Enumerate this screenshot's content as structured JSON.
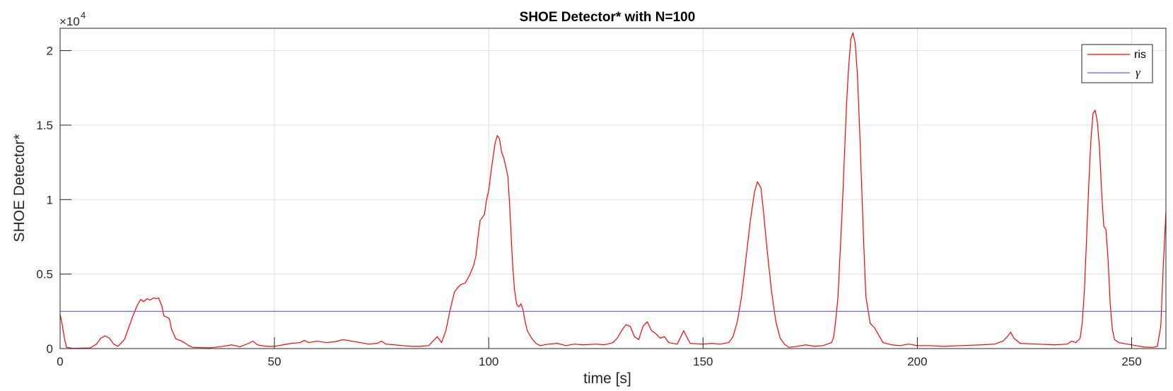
{
  "chart_data": {
    "type": "line",
    "title": "SHOE Detector* with N=100",
    "xlabel": "time [s]",
    "ylabel": "SHOE Detector*",
    "xlim": [
      0,
      258
    ],
    "ylim": [
      0,
      21500
    ],
    "x_ticks": [
      0,
      50,
      100,
      150,
      200,
      250
    ],
    "x_tick_labels": [
      "0",
      "50",
      "100",
      "150",
      "200",
      "250"
    ],
    "y_ticks": [
      0,
      5000,
      10000,
      15000,
      20000
    ],
    "y_tick_labels": [
      "0",
      "0.5",
      "1",
      "1.5",
      "2"
    ],
    "y_exponent_label": {
      "base": "×10",
      "power": "4"
    },
    "grid": true,
    "legend_position": "top-right",
    "series": [
      {
        "name": "ris",
        "color": "#ff0000",
        "points": [
          [
            0,
            2300
          ],
          [
            0.5,
            1600
          ],
          [
            1,
            700
          ],
          [
            1.5,
            80
          ],
          [
            3,
            20
          ],
          [
            7,
            40
          ],
          [
            8.5,
            300
          ],
          [
            9.5,
            700
          ],
          [
            10.5,
            850
          ],
          [
            11.5,
            700
          ],
          [
            12.5,
            300
          ],
          [
            13.5,
            150
          ],
          [
            15,
            600
          ],
          [
            16,
            1400
          ],
          [
            17,
            2200
          ],
          [
            18,
            2900
          ],
          [
            18.8,
            3300
          ],
          [
            19.5,
            3150
          ],
          [
            20.3,
            3350
          ],
          [
            21,
            3250
          ],
          [
            21.8,
            3400
          ],
          [
            22.5,
            3350
          ],
          [
            23,
            3400
          ],
          [
            23.8,
            2800
          ],
          [
            24.2,
            2200
          ],
          [
            25,
            2100
          ],
          [
            25.5,
            2000
          ],
          [
            26,
            1300
          ],
          [
            27,
            650
          ],
          [
            28,
            550
          ],
          [
            29,
            400
          ],
          [
            30,
            200
          ],
          [
            31,
            80
          ],
          [
            35,
            50
          ],
          [
            38,
            150
          ],
          [
            40,
            250
          ],
          [
            42,
            120
          ],
          [
            44,
            350
          ],
          [
            45,
            500
          ],
          [
            46,
            250
          ],
          [
            48,
            150
          ],
          [
            50,
            150
          ],
          [
            52,
            250
          ],
          [
            54,
            350
          ],
          [
            56,
            400
          ],
          [
            57,
            550
          ],
          [
            58,
            400
          ],
          [
            60,
            500
          ],
          [
            62,
            400
          ],
          [
            64,
            450
          ],
          [
            66,
            600
          ],
          [
            68,
            500
          ],
          [
            70,
            400
          ],
          [
            72,
            300
          ],
          [
            74,
            350
          ],
          [
            75,
            500
          ],
          [
            76,
            300
          ],
          [
            78,
            250
          ],
          [
            80,
            200
          ],
          [
            82,
            150
          ],
          [
            84,
            150
          ],
          [
            86,
            200
          ],
          [
            87,
            500
          ],
          [
            88,
            800
          ],
          [
            89,
            400
          ],
          [
            90,
            1200
          ],
          [
            91,
            2600
          ],
          [
            92,
            3800
          ],
          [
            92.8,
            4100
          ],
          [
            93.5,
            4300
          ],
          [
            94.5,
            4400
          ],
          [
            95.5,
            4900
          ],
          [
            96.5,
            5600
          ],
          [
            97,
            6200
          ],
          [
            97.5,
            7500
          ],
          [
            98,
            8600
          ],
          [
            98.5,
            8800
          ],
          [
            99,
            9000
          ],
          [
            99.5,
            10000
          ],
          [
            100,
            10600
          ],
          [
            100.5,
            11800
          ],
          [
            101,
            12800
          ],
          [
            101.5,
            13800
          ],
          [
            102,
            14300
          ],
          [
            102.5,
            14100
          ],
          [
            103,
            13200
          ],
          [
            103.5,
            12800
          ],
          [
            104,
            12200
          ],
          [
            104.5,
            11500
          ],
          [
            105,
            9000
          ],
          [
            105.5,
            6000
          ],
          [
            106,
            4000
          ],
          [
            106.5,
            3000
          ],
          [
            107,
            2800
          ],
          [
            107.5,
            3000
          ],
          [
            108,
            2600
          ],
          [
            108.5,
            1800
          ],
          [
            109,
            1200
          ],
          [
            110,
            700
          ],
          [
            111,
            350
          ],
          [
            112,
            200
          ],
          [
            114,
            300
          ],
          [
            116,
            350
          ],
          [
            118,
            200
          ],
          [
            120,
            300
          ],
          [
            122,
            250
          ],
          [
            125,
            300
          ],
          [
            127,
            250
          ],
          [
            129,
            400
          ],
          [
            130,
            700
          ],
          [
            131,
            1200
          ],
          [
            132,
            1600
          ],
          [
            133,
            1500
          ],
          [
            134,
            800
          ],
          [
            135,
            600
          ],
          [
            136,
            1500
          ],
          [
            137,
            1800
          ],
          [
            138,
            1200
          ],
          [
            139,
            1000
          ],
          [
            140,
            700
          ],
          [
            141,
            800
          ],
          [
            142,
            400
          ],
          [
            144,
            300
          ],
          [
            145,
            900
          ],
          [
            145.5,
            1200
          ],
          [
            146,
            900
          ],
          [
            147,
            350
          ],
          [
            150,
            300
          ],
          [
            152,
            350
          ],
          [
            154,
            300
          ],
          [
            156,
            400
          ],
          [
            157,
            800
          ],
          [
            158,
            1800
          ],
          [
            159,
            3500
          ],
          [
            160,
            6000
          ],
          [
            161,
            8500
          ],
          [
            162,
            10500
          ],
          [
            162.7,
            11200
          ],
          [
            163.5,
            10800
          ],
          [
            164,
            9500
          ],
          [
            165,
            6500
          ],
          [
            166,
            3800
          ],
          [
            167,
            1800
          ],
          [
            168,
            700
          ],
          [
            169,
            300
          ],
          [
            170,
            80
          ],
          [
            172,
            150
          ],
          [
            174,
            250
          ],
          [
            176,
            150
          ],
          [
            178,
            200
          ],
          [
            180,
            400
          ],
          [
            180.5,
            800
          ],
          [
            181,
            2000
          ],
          [
            181.5,
            3500
          ],
          [
            182,
            6500
          ],
          [
            182.5,
            9500
          ],
          [
            183,
            13000
          ],
          [
            183.5,
            16500
          ],
          [
            184,
            19000
          ],
          [
            184.5,
            20800
          ],
          [
            185,
            21200
          ],
          [
            185.5,
            20500
          ],
          [
            186,
            18500
          ],
          [
            186.5,
            15000
          ],
          [
            187,
            11000
          ],
          [
            187.5,
            7000
          ],
          [
            188,
            3500
          ],
          [
            189,
            1700
          ],
          [
            190,
            1400
          ],
          [
            191,
            900
          ],
          [
            192,
            400
          ],
          [
            194,
            250
          ],
          [
            196,
            200
          ],
          [
            198,
            300
          ],
          [
            200,
            200
          ],
          [
            203,
            200
          ],
          [
            206,
            150
          ],
          [
            210,
            200
          ],
          [
            215,
            250
          ],
          [
            218,
            300
          ],
          [
            220,
            500
          ],
          [
            221,
            800
          ],
          [
            221.8,
            1100
          ],
          [
            222.5,
            700
          ],
          [
            224,
            350
          ],
          [
            228,
            300
          ],
          [
            232,
            250
          ],
          [
            235,
            300
          ],
          [
            236,
            500
          ],
          [
            237,
            400
          ],
          [
            238,
            700
          ],
          [
            238.5,
            1800
          ],
          [
            239,
            4000
          ],
          [
            239.5,
            7500
          ],
          [
            240,
            11000
          ],
          [
            240.5,
            14000
          ],
          [
            241,
            15800
          ],
          [
            241.5,
            16000
          ],
          [
            242,
            15200
          ],
          [
            242.5,
            13500
          ],
          [
            243,
            10500
          ],
          [
            243.5,
            8200
          ],
          [
            244,
            8000
          ],
          [
            244.5,
            6000
          ],
          [
            245,
            3000
          ],
          [
            245.5,
            1300
          ],
          [
            246,
            600
          ],
          [
            247,
            400
          ],
          [
            249,
            300
          ],
          [
            251,
            200
          ],
          [
            253,
            100
          ],
          [
            255,
            80
          ],
          [
            256,
            150
          ],
          [
            256.8,
            1500
          ],
          [
            257.3,
            5000
          ],
          [
            258,
            9200
          ]
        ]
      },
      {
        "name": "γ",
        "color": "#5a5af5",
        "points": [
          [
            0,
            2500
          ],
          [
            258,
            2500
          ]
        ]
      }
    ]
  }
}
